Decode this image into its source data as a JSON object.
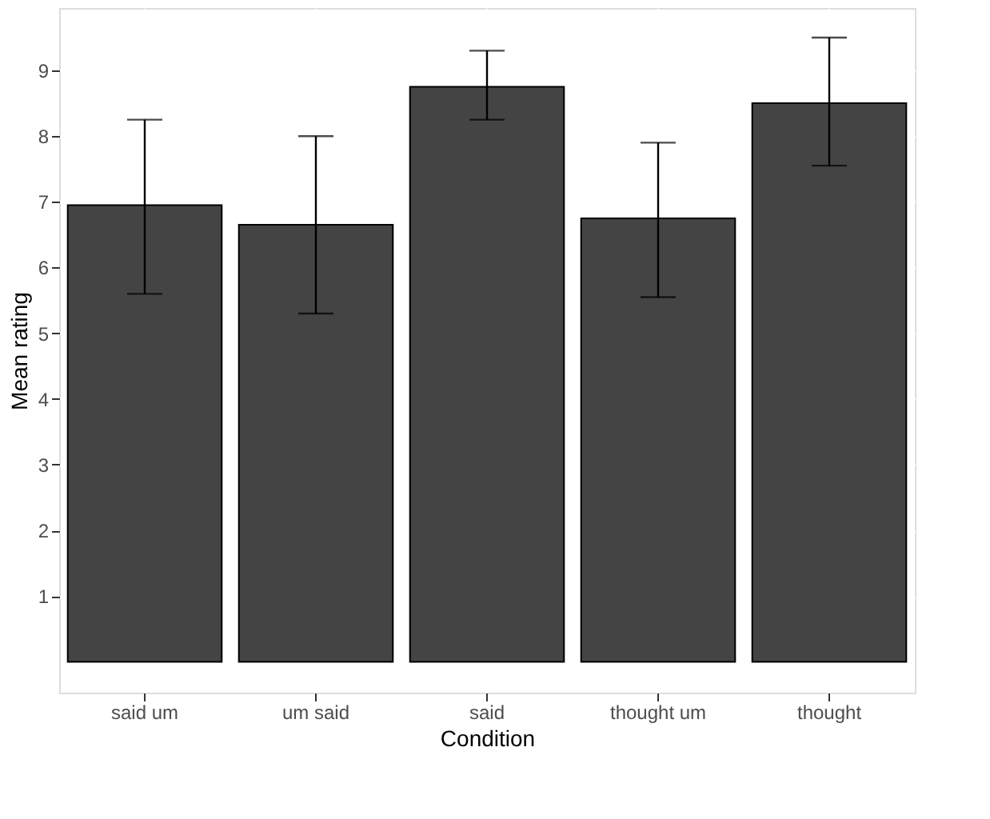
{
  "chart_data": {
    "type": "bar",
    "xlabel": "Condition",
    "ylabel": "Mean rating",
    "categories": [
      "said um",
      "um said",
      "said",
      "thought um",
      "thought"
    ],
    "values": [
      6.95,
      6.65,
      8.75,
      6.75,
      8.5
    ],
    "errors": [
      [
        5.6,
        8.25
      ],
      [
        5.3,
        8.0
      ],
      [
        8.25,
        9.3
      ],
      [
        5.55,
        7.9
      ],
      [
        7.55,
        9.5
      ]
    ],
    "color": "#444444",
    "ylim": [
      -0.47,
      9.95
    ],
    "yticks": [
      1,
      2,
      3,
      4,
      5,
      6,
      7,
      8,
      9
    ],
    "grid": true
  }
}
